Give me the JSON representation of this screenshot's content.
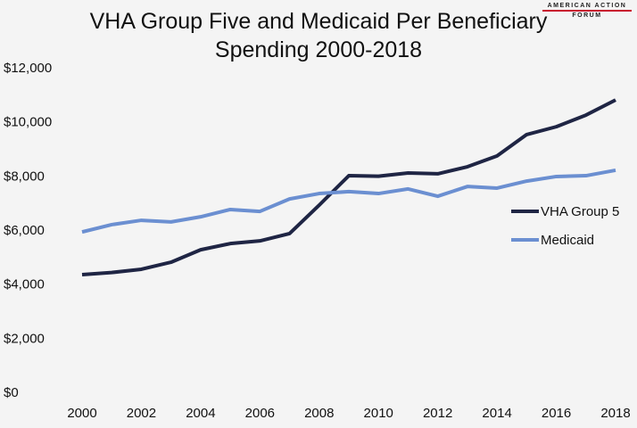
{
  "chart_data": {
    "type": "line",
    "title": "VHA Group Five and Medicaid Per Beneficiary Spending 2000-2018",
    "title_lines": [
      "VHA Group Five and Medicaid Per Beneficiary",
      "Spending 2000-2018"
    ],
    "xlabel": "",
    "ylabel": "",
    "ylim": [
      0,
      12000
    ],
    "yticks": [
      "$0",
      "$2,000",
      "$4,000",
      "$6,000",
      "$8,000",
      "$10,000",
      "$12,000"
    ],
    "xticks": [
      "2000",
      "2002",
      "2004",
      "2006",
      "2008",
      "2010",
      "2012",
      "2014",
      "2016",
      "2018"
    ],
    "x": [
      2000,
      2001,
      2002,
      2003,
      2004,
      2005,
      2006,
      2007,
      2008,
      2009,
      2010,
      2011,
      2012,
      2013,
      2014,
      2015,
      2016,
      2017,
      2018
    ],
    "grid": false,
    "legend_position": "right",
    "series": [
      {
        "name": "VHA Group 5",
        "color": "#1f2544",
        "values": [
          4350,
          4430,
          4550,
          4810,
          5270,
          5500,
          5600,
          5870,
          6920,
          8010,
          7990,
          8110,
          8080,
          8340,
          8740,
          9530,
          9820,
          10250,
          10810
        ]
      },
      {
        "name": "Medicaid",
        "color": "#6b8fd1",
        "values": [
          5930,
          6200,
          6360,
          6300,
          6490,
          6760,
          6690,
          7150,
          7350,
          7420,
          7350,
          7520,
          7250,
          7610,
          7550,
          7810,
          7980,
          8010,
          8210
        ]
      }
    ]
  },
  "logo": {
    "line1": "AMERICAN ACTION",
    "line2": "FORUM"
  }
}
